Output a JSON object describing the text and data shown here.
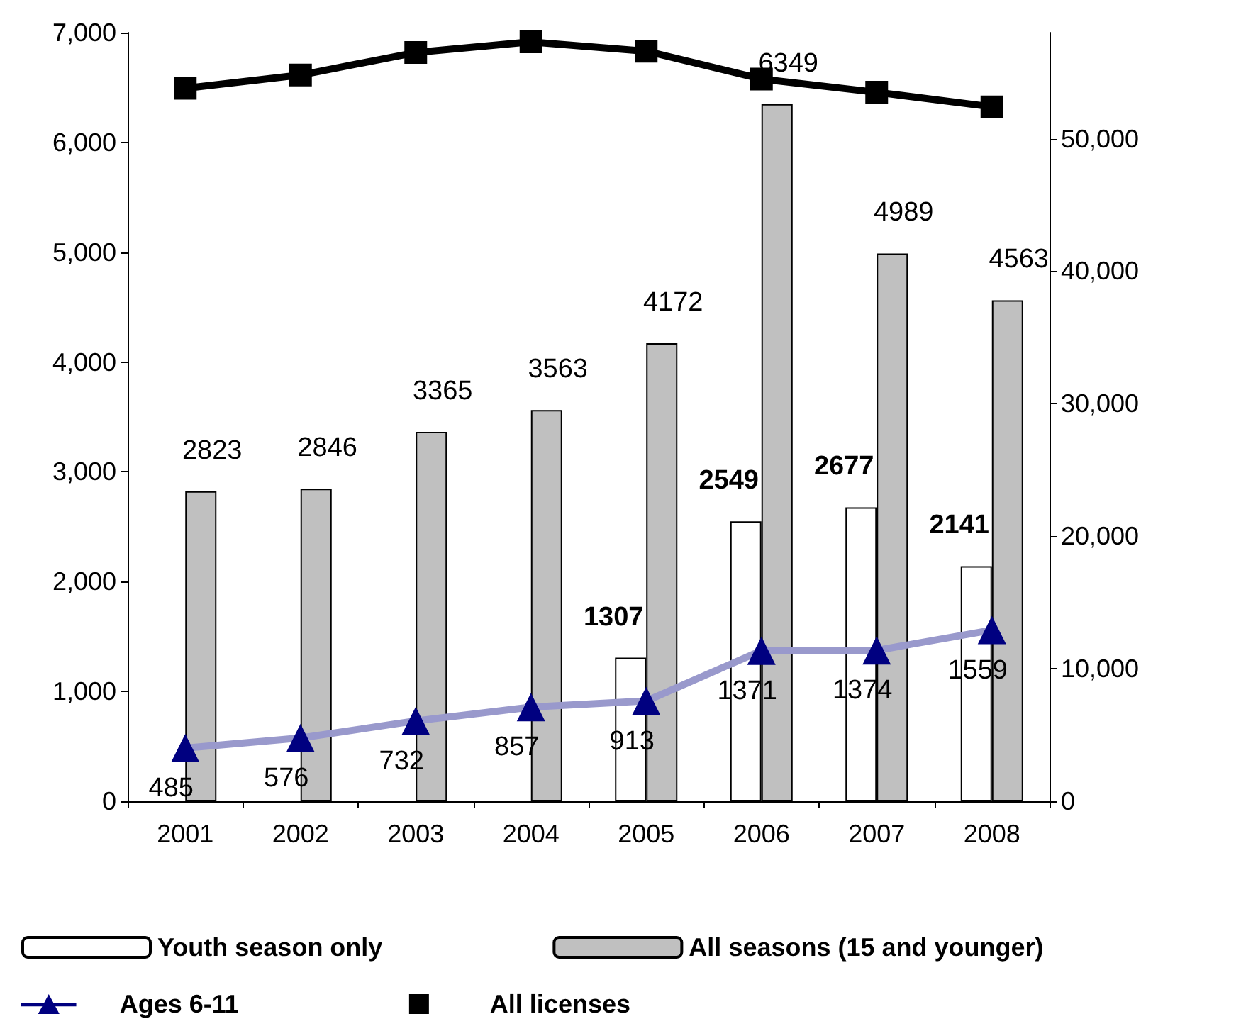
{
  "chart_data": {
    "type": "bar",
    "categories": [
      "2001",
      "2002",
      "2003",
      "2004",
      "2005",
      "2006",
      "2007",
      "2008"
    ],
    "series": [
      {
        "name": "Youth season only",
        "color": "#ffffff",
        "values": [
          null,
          null,
          null,
          null,
          1307,
          2549,
          2677,
          2141
        ],
        "value_labels": [
          null,
          null,
          null,
          null,
          "1307",
          "2549",
          "2677",
          "2141"
        ]
      },
      {
        "name": "All seasons (15 and younger)",
        "color": "#c0c0c0",
        "values": [
          2823,
          2846,
          3365,
          3563,
          4172,
          6349,
          4989,
          4563
        ],
        "value_labels": [
          "2823",
          "2846",
          "3365",
          "3563",
          "4172",
          "6349",
          "4989",
          "4563"
        ]
      },
      {
        "name": "Ages 6-11",
        "type": "line",
        "color": "#9999cc",
        "marker": "triangle",
        "values": [
          485,
          576,
          732,
          857,
          913,
          1371,
          1374,
          1559
        ],
        "value_labels": [
          "485",
          "576",
          "732",
          "857",
          "913",
          "1371",
          "1374",
          "1559"
        ]
      },
      {
        "name": "All licenses",
        "type": "line",
        "color": "#000000",
        "marker": "square",
        "axis": "y2",
        "values": [
          53800,
          54800,
          56500,
          57300,
          56600,
          54500,
          53500,
          52400
        ]
      }
    ],
    "ylim": [
      0,
      7000
    ],
    "yticks": [
      0,
      {
        "value": 1000,
        "label": "1,000"
      },
      {
        "value": 2000,
        "label": "2,000"
      },
      {
        "value": 3000,
        "label": "3,000"
      },
      {
        "value": 4000,
        "label": "4,000"
      },
      {
        "value": 5000,
        "label": "5,000"
      },
      {
        "value": 6000,
        "label": "6,000"
      },
      {
        "value": 7000,
        "label": "7,000"
      }
    ],
    "y2lim": [
      0,
      58000
    ],
    "y2ticks": [
      0,
      {
        "value": 10000,
        "label": "10,000"
      },
      {
        "value": 20000,
        "label": "20,000"
      },
      {
        "value": 30000,
        "label": "30,000"
      },
      {
        "value": 40000,
        "label": "40,000"
      },
      {
        "value": 50000,
        "label": "50,000"
      }
    ],
    "grid": false,
    "legend": "bottom"
  }
}
